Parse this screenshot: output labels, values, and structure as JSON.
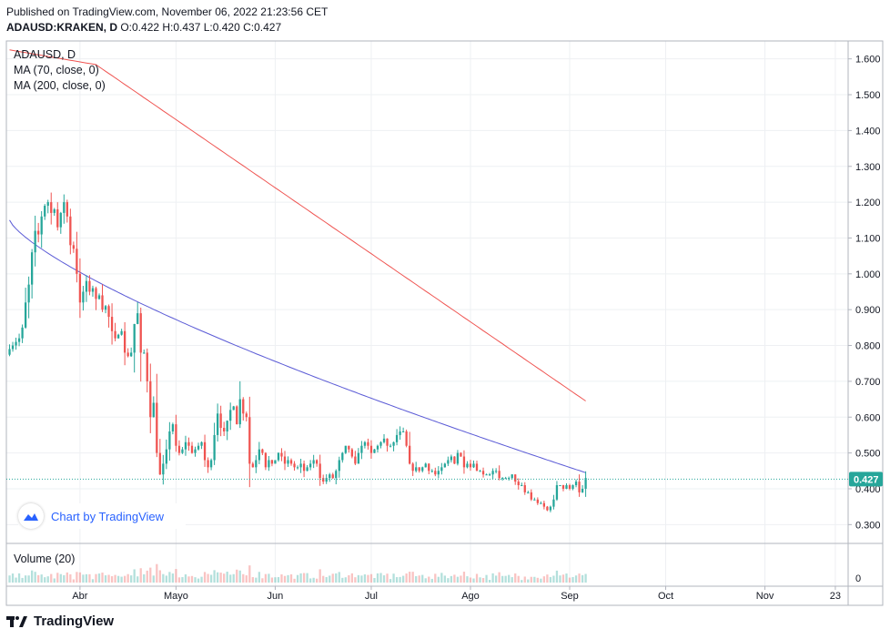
{
  "header": {
    "published": "Published on TradingView.com, November 06, 2022 21:23:56 CET",
    "symbol": "ADAUSD:KRAKEN, D",
    "ohlc": "O:0.422 H:0.437 L:0.420 C:0.427"
  },
  "legend": {
    "title": "ADAUSD, D",
    "ma70": "MA (70, close, 0)",
    "ma200": "MA (200, close, 0)",
    "volume": "Volume (20)"
  },
  "watermark": "Chart by TradingView",
  "footer": "TradingView",
  "colors": {
    "up": "#26a69a",
    "down": "#ef5350",
    "ma70": "#5b5bd6",
    "ma200": "#ef5350",
    "last_price_bg": "#26a69a",
    "grid": "#eef0f3"
  },
  "chart_data": {
    "type": "candlestick",
    "symbol": "ADAUSD",
    "interval": "D",
    "y_axis": {
      "min": 0.25,
      "max": 1.65,
      "ticks": [
        "1.600",
        "1.500",
        "1.400",
        "1.300",
        "1.200",
        "1.100",
        "1.000",
        "0.900",
        "0.800",
        "0.700",
        "0.600",
        "0.500",
        "0.400",
        "0.300"
      ]
    },
    "x_axis_ticks": [
      {
        "label": "Abr",
        "day": 22
      },
      {
        "label": "Mayo",
        "day": 52
      },
      {
        "label": "Jun",
        "day": 83
      },
      {
        "label": "Jul",
        "day": 113
      },
      {
        "label": "Ago",
        "day": 144
      },
      {
        "label": "Sep",
        "day": 175
      },
      {
        "label": "Oct",
        "day": 205
      },
      {
        "label": "Nov",
        "day": 236
      },
      {
        "label": "23",
        "day": 258
      }
    ],
    "x_range_days": [
      -1,
      262
    ],
    "last_price": 0.427,
    "last_price_label": "0.427",
    "closes": [
      0.79,
      0.8,
      0.81,
      0.82,
      0.85,
      0.92,
      0.97,
      1.06,
      1.12,
      1.11,
      1.16,
      1.19,
      1.2,
      1.17,
      1.18,
      1.13,
      1.17,
      1.2,
      1.16,
      1.08,
      1.07,
      1.0,
      0.92,
      0.95,
      0.98,
      0.95,
      0.96,
      0.93,
      0.94,
      0.9,
      0.91,
      0.88,
      0.84,
      0.82,
      0.83,
      0.84,
      0.78,
      0.77,
      0.78,
      0.86,
      0.89,
      0.78,
      0.78,
      0.7,
      0.6,
      0.64,
      0.5,
      0.44,
      0.47,
      0.51,
      0.56,
      0.58,
      0.52,
      0.5,
      0.51,
      0.53,
      0.52,
      0.5,
      0.51,
      0.52,
      0.53,
      0.48,
      0.46,
      0.48,
      0.55,
      0.61,
      0.57,
      0.56,
      0.59,
      0.62,
      0.63,
      0.58,
      0.65,
      0.61,
      0.6,
      0.47,
      0.46,
      0.48,
      0.51,
      0.5,
      0.46,
      0.48,
      0.47,
      0.48,
      0.5,
      0.49,
      0.47,
      0.48,
      0.47,
      0.46,
      0.46,
      0.47,
      0.45,
      0.46,
      0.47,
      0.48,
      0.47,
      0.43,
      0.42,
      0.43,
      0.44,
      0.43,
      0.45,
      0.48,
      0.5,
      0.52,
      0.51,
      0.49,
      0.47,
      0.5,
      0.52,
      0.53,
      0.52,
      0.5,
      0.51,
      0.52,
      0.53,
      0.54,
      0.52,
      0.52,
      0.53,
      0.55,
      0.56,
      0.56,
      0.52,
      0.47,
      0.45,
      0.46,
      0.45,
      0.46,
      0.47,
      0.45,
      0.45,
      0.44,
      0.45,
      0.46,
      0.47,
      0.48,
      0.49,
      0.47,
      0.5,
      0.49,
      0.46,
      0.47,
      0.46,
      0.47,
      0.45,
      0.45,
      0.44,
      0.44,
      0.44,
      0.45,
      0.45,
      0.43,
      0.43,
      0.43,
      0.43,
      0.44,
      0.42,
      0.41,
      0.41,
      0.39,
      0.39,
      0.37,
      0.37,
      0.36,
      0.36,
      0.35,
      0.34,
      0.35,
      0.37,
      0.41,
      0.41,
      0.4,
      0.41,
      0.4,
      0.41,
      0.42,
      0.39,
      0.4,
      0.43
    ],
    "volume_scale_max": 1.0
  }
}
